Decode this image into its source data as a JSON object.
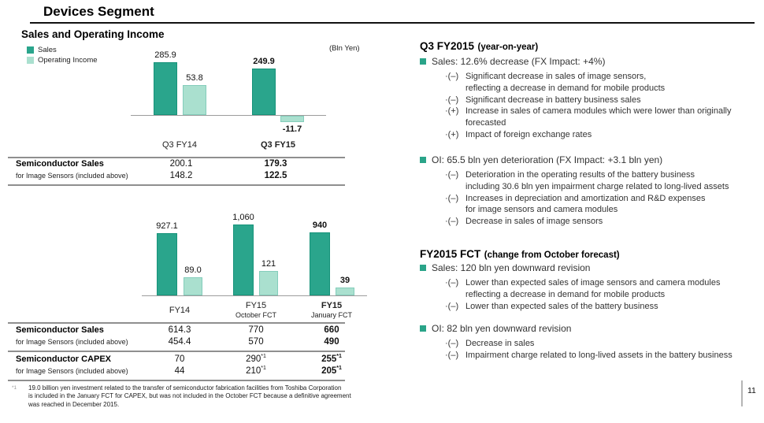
{
  "slide": {
    "title": "Devices Segment",
    "page_number": "11",
    "accent_color": "#2aa489"
  },
  "left": {
    "section_title": "Sales and Operating Income",
    "unit_label": "(Bln Yen)"
  },
  "chart_data": [
    {
      "type": "bar",
      "title": "Sales and Operating Income (Q3, year-on-year)",
      "ylabel": "Bln Yen",
      "grid": false,
      "legend_position": "top-left",
      "legend": [
        {
          "label": "Sales",
          "color": "#2aa58c"
        },
        {
          "label": "Operating Income",
          "color": "#aae0cf"
        }
      ],
      "categories": [
        "Q3 FY14",
        "Q3 FY15"
      ],
      "series": [
        {
          "name": "Sales",
          "values": [
            285.9,
            249.9
          ]
        },
        {
          "name": "Operating Income",
          "values": [
            53.8,
            -11.7
          ]
        }
      ],
      "groups": [
        {
          "label1": "Q3 FY14",
          "label2": "",
          "sales": 285.9,
          "oi": 53.8,
          "sales_label": "285.9",
          "oi_label": "53.8",
          "bold": false
        },
        {
          "label1": "Q3 FY15",
          "label2": "",
          "sales": 249.9,
          "oi": -11.7,
          "sales_label": "249.9",
          "oi_label": "-11.7",
          "bold": true
        }
      ]
    },
    {
      "type": "bar",
      "title": "Sales and Operating Income (full year FY14 vs FY15 forecasts)",
      "ylabel": "Bln Yen",
      "grid": false,
      "categories": [
        "FY14",
        "FY15 October FCT",
        "FY15 January FCT"
      ],
      "series": [
        {
          "name": "Sales",
          "values": [
            927.1,
            1060,
            940
          ]
        },
        {
          "name": "Operating Income",
          "values": [
            89.0,
            121,
            39
          ]
        }
      ],
      "groups": [
        {
          "label1": "FY14",
          "label2": "",
          "sales": 927.1,
          "oi": 89.0,
          "sales_label": "927.1",
          "oi_label": "89.0",
          "bold": false
        },
        {
          "label1": "FY15",
          "label2": "October FCT",
          "sales": 1060,
          "oi": 121,
          "sales_label": "1,060",
          "oi_label": "121",
          "bold": false
        },
        {
          "label1": "FY15",
          "label2": "January FCT",
          "sales": 940,
          "oi": 39,
          "sales_label": "940",
          "oi_label": "39",
          "bold": true
        }
      ]
    }
  ],
  "tables": [
    {
      "rows": [
        {
          "label": "Semiconductor Sales",
          "sublabel": "for Image Sensors (included above)",
          "cells": [
            {
              "v": "200.1",
              "sup": ""
            },
            {
              "v": "179.3",
              "sup": ""
            }
          ],
          "subcells": [
            {
              "v": "148.2",
              "sup": ""
            },
            {
              "v": "122.5",
              "sup": ""
            }
          ]
        }
      ]
    },
    {
      "rows": [
        {
          "label": "Semiconductor Sales",
          "sublabel": "for Image Sensors (included above)",
          "cells": [
            {
              "v": "614.3",
              "sup": ""
            },
            {
              "v": "770",
              "sup": ""
            },
            {
              "v": "660",
              "sup": ""
            }
          ],
          "subcells": [
            {
              "v": "454.4",
              "sup": ""
            },
            {
              "v": "570",
              "sup": ""
            },
            {
              "v": "490",
              "sup": ""
            }
          ]
        },
        {
          "label": "Semiconductor CAPEX",
          "sublabel": "for Image Sensors (included above)",
          "cells": [
            {
              "v": "70",
              "sup": ""
            },
            {
              "v": "290",
              "sup": "*1"
            },
            {
              "v": "255",
              "sup": "*1"
            }
          ],
          "subcells": [
            {
              "v": "44",
              "sup": ""
            },
            {
              "v": "210",
              "sup": "*1"
            },
            {
              "v": "205",
              "sup": "*1"
            }
          ]
        }
      ]
    }
  ],
  "right": {
    "section1": {
      "title_big": "Q3 FY2015",
      "title_small": "(year-on-year)",
      "bullets": [
        {
          "text": "Sales: 12.6% decrease (FX Impact:  +4%)",
          "subs": [
            {
              "prefix": "·(–)",
              "text": "Significant decrease in sales of image sensors,\nreflecting a decrease in demand for mobile products"
            },
            {
              "prefix": "·(–)",
              "text": "Significant decrease in battery business sales"
            },
            {
              "prefix": "·(+)",
              "text": "Increase in sales of camera modules which were lower than originally\nforecasted"
            },
            {
              "prefix": "·(+)",
              "text": "Impact of foreign exchange rates"
            }
          ]
        },
        {
          "text": "OI: 65.5 bln yen deterioration (FX Impact:  +3.1 bln yen)",
          "subs": [
            {
              "prefix": "·(–)",
              "text": "Deterioration in the operating results of the battery business\nincluding 30.6 bln yen impairment charge related to long-lived assets"
            },
            {
              "prefix": "·(–)",
              "text": "Increases in depreciation and amortization and R&D expenses\nfor image sensors and camera modules"
            },
            {
              "prefix": "·(–)",
              "text": "Decrease in sales of image sensors"
            }
          ]
        }
      ]
    },
    "section2": {
      "title_big": "FY2015 FCT",
      "title_small": "(change from October forecast)",
      "bullets": [
        {
          "text": "Sales: 120 bln yen downward revision",
          "subs": [
            {
              "prefix": "·(–)",
              "text": "Lower than expected sales of image sensors and camera modules\nreflecting a decrease in demand for mobile products"
            },
            {
              "prefix": "·(–)",
              "text": "Lower than expected sales of the battery business"
            }
          ]
        },
        {
          "text": "OI: 82 bln yen downward revision",
          "subs": [
            {
              "prefix": "·(–)",
              "text": "Decrease in sales"
            },
            {
              "prefix": "·(–)",
              "text": "Impairment charge related to long-lived assets in the battery business"
            }
          ]
        }
      ]
    }
  },
  "footnote": {
    "marker": "*1",
    "text": "19.0 billion yen investment related to the transfer of semiconductor fabrication facilities from Toshiba Corporation\nis included in the January FCT for CAPEX, but was not included in the October FCT because a definitive agreement\nwas reached in December 2015."
  }
}
